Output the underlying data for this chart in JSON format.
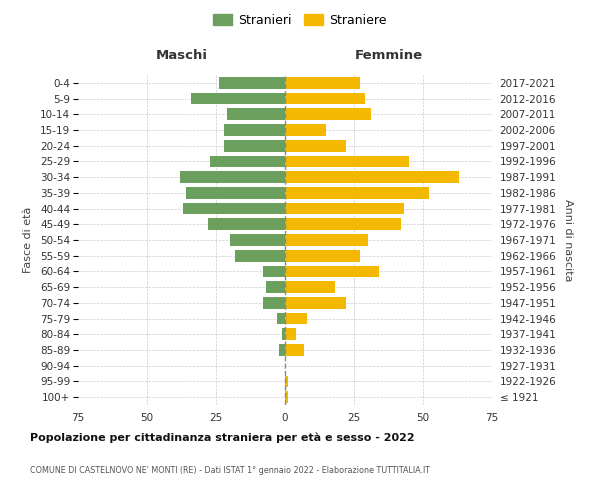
{
  "age_groups": [
    "100+",
    "95-99",
    "90-94",
    "85-89",
    "80-84",
    "75-79",
    "70-74",
    "65-69",
    "60-64",
    "55-59",
    "50-54",
    "45-49",
    "40-44",
    "35-39",
    "30-34",
    "25-29",
    "20-24",
    "15-19",
    "10-14",
    "5-9",
    "0-4"
  ],
  "birth_years": [
    "≤ 1921",
    "1922-1926",
    "1927-1931",
    "1932-1936",
    "1937-1941",
    "1942-1946",
    "1947-1951",
    "1952-1956",
    "1957-1961",
    "1962-1966",
    "1967-1971",
    "1972-1976",
    "1977-1981",
    "1982-1986",
    "1987-1991",
    "1992-1996",
    "1997-2001",
    "2002-2006",
    "2007-2011",
    "2012-2016",
    "2017-2021"
  ],
  "maschi": [
    0,
    0,
    0,
    2,
    1,
    3,
    8,
    7,
    8,
    18,
    20,
    28,
    37,
    36,
    38,
    27,
    22,
    22,
    21,
    34,
    24
  ],
  "femmine": [
    1,
    1,
    0,
    7,
    4,
    8,
    22,
    18,
    34,
    27,
    30,
    42,
    43,
    52,
    63,
    45,
    22,
    15,
    31,
    29,
    27
  ],
  "maschi_color": "#6a9f5e",
  "femmine_color": "#f5b800",
  "background_color": "#ffffff",
  "grid_color": "#cccccc",
  "title": "Popolazione per cittadinanza straniera per età e sesso - 2022",
  "subtitle": "COMUNE DI CASTELNOVO NE' MONTI (RE) - Dati ISTAT 1° gennaio 2022 - Elaborazione TUTTITALIA.IT",
  "xlabel_left": "Maschi",
  "xlabel_right": "Femmine",
  "ylabel_left": "Fasce di età",
  "ylabel_right": "Anni di nascita",
  "xlim": 75,
  "legend_stranieri": "Stranieri",
  "legend_straniere": "Straniere"
}
